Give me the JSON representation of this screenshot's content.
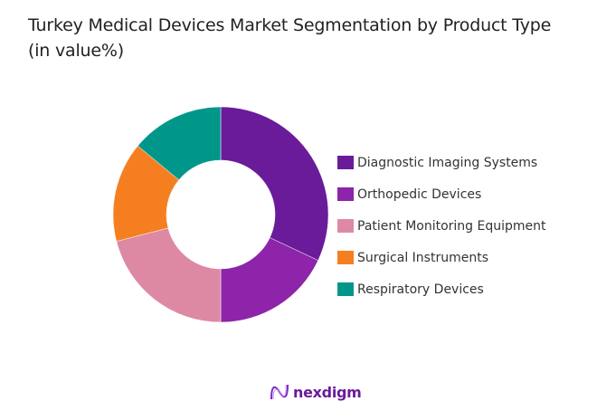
{
  "title": "Turkey Medical Devices Market Segmentation by Product Type (in value%)",
  "logo": {
    "text": "nexdigm",
    "icon": "nexdigm-wave-logo-icon"
  },
  "chart_data": {
    "type": "pie",
    "subtype": "donut",
    "title": "Turkey Medical Devices Market Segmentation by Product Type (in value%)",
    "categories": [
      "Diagnostic Imaging Systems",
      "Orthopedic Devices",
      "Patient Monitoring Equipment",
      "Surgical Instruments",
      "Respiratory Devices"
    ],
    "values": [
      32,
      18,
      21,
      15,
      14
    ],
    "colors": [
      "#6a1b9a",
      "#8e24aa",
      "#de89a3",
      "#f57f20",
      "#00978a"
    ],
    "legend_position": "right",
    "start_angle": "12 o'clock, clockwise",
    "unit": "%"
  }
}
